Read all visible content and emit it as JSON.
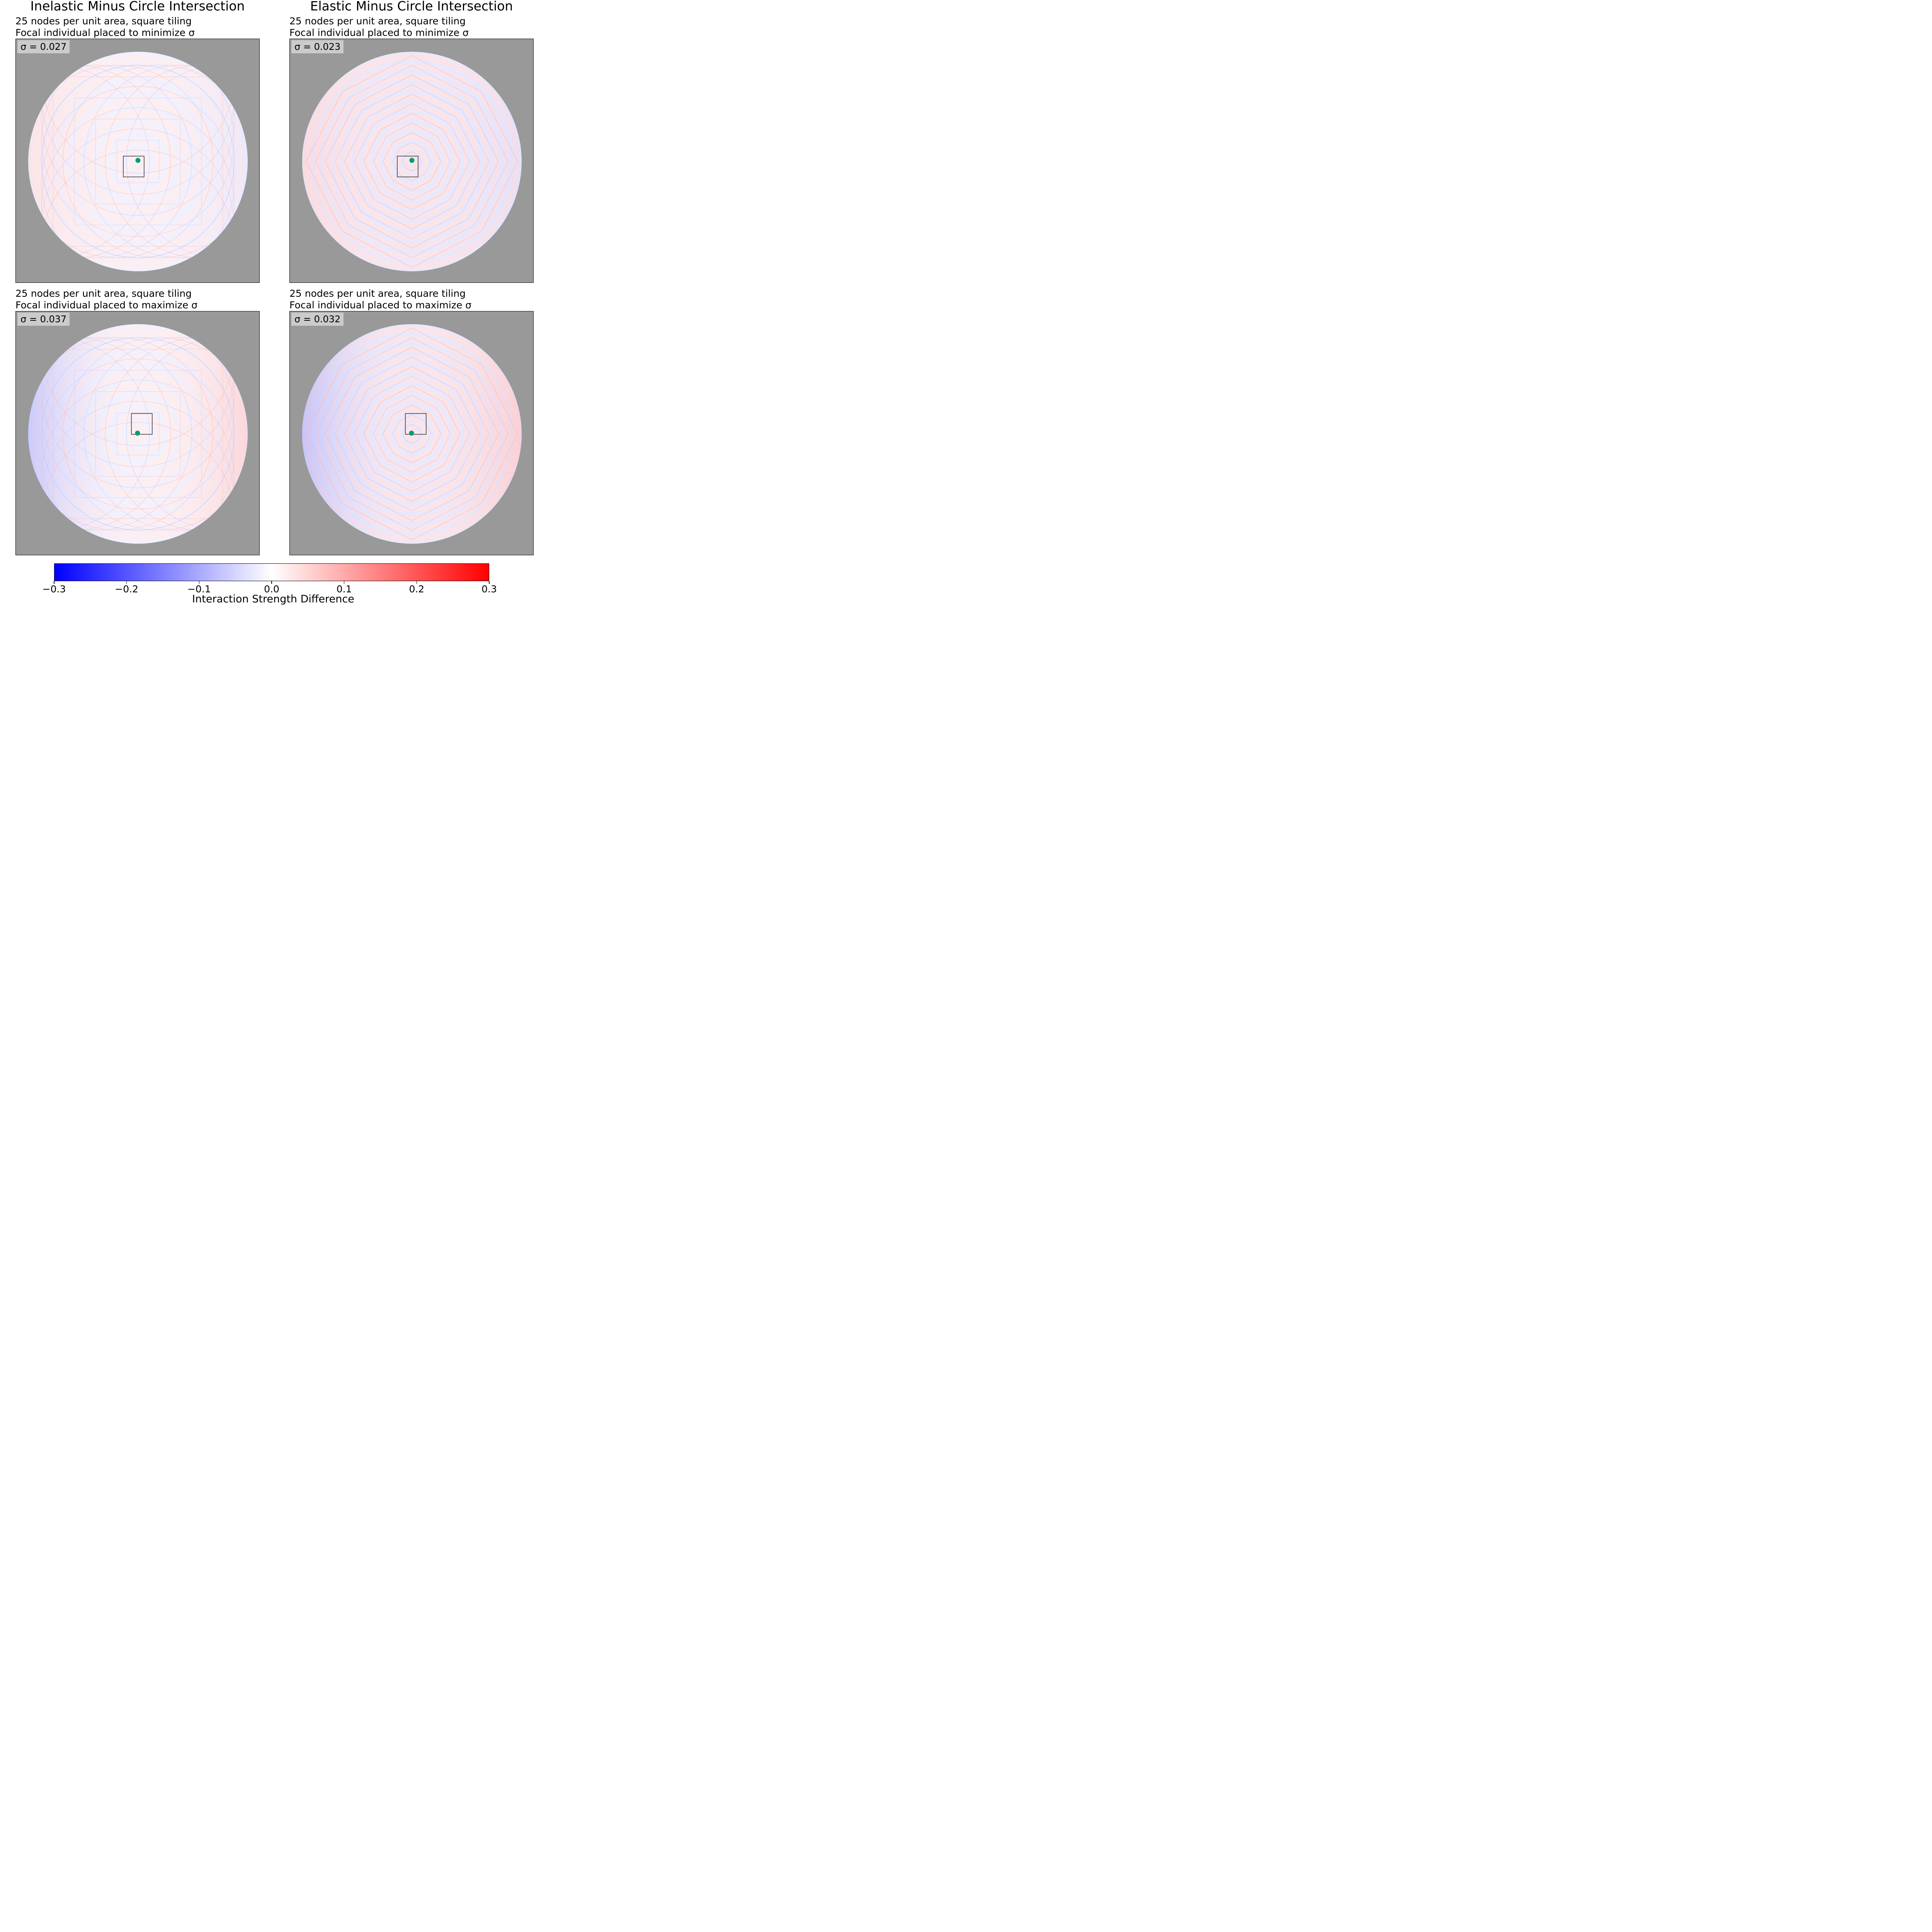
{
  "columns": [
    {
      "title": "Inelastic Minus Circle Intersection"
    },
    {
      "title": "Elastic Minus Circle Intersection"
    }
  ],
  "panels": [
    {
      "line1": "25 nodes per unit area, square tiling",
      "line2": "Focal individual placed to minimize σ",
      "sigma": "σ = 0.027"
    },
    {
      "line1": "25 nodes per unit area, square tiling",
      "line2": "Focal individual placed to minimize σ",
      "sigma": "σ = 0.023"
    },
    {
      "line1": "25 nodes per unit area, square tiling",
      "line2": "Focal individual placed to maximize σ",
      "sigma": "σ = 0.037"
    },
    {
      "line1": "25 nodes per unit area, square tiling",
      "line2": "Focal individual placed to maximize σ",
      "sigma": "σ = 0.032"
    }
  ],
  "colorbar": {
    "label": "Interaction Strength Difference",
    "ticks": [
      "−0.3",
      "−0.2",
      "−0.1",
      "0.0",
      "0.1",
      "0.2",
      "0.3"
    ],
    "range": [
      -0.3,
      0.3
    ],
    "colors": {
      "low": "#0000ff",
      "mid": "#ffffff",
      "high": "#ff0000",
      "background": "#999999",
      "focal": "#009e73"
    }
  },
  "chart_data": {
    "type": "heatmap",
    "colormap": "bwr",
    "vmin": -0.3,
    "vmax": 0.3,
    "panels": [
      {
        "method": "Inelastic",
        "placement": "minimize",
        "sigma": 0.027
      },
      {
        "method": "Elastic",
        "placement": "minimize",
        "sigma": 0.023
      },
      {
        "method": "Inelastic",
        "placement": "maximize",
        "sigma": 0.037
      },
      {
        "method": "Elastic",
        "placement": "maximize",
        "sigma": 0.032
      }
    ]
  }
}
